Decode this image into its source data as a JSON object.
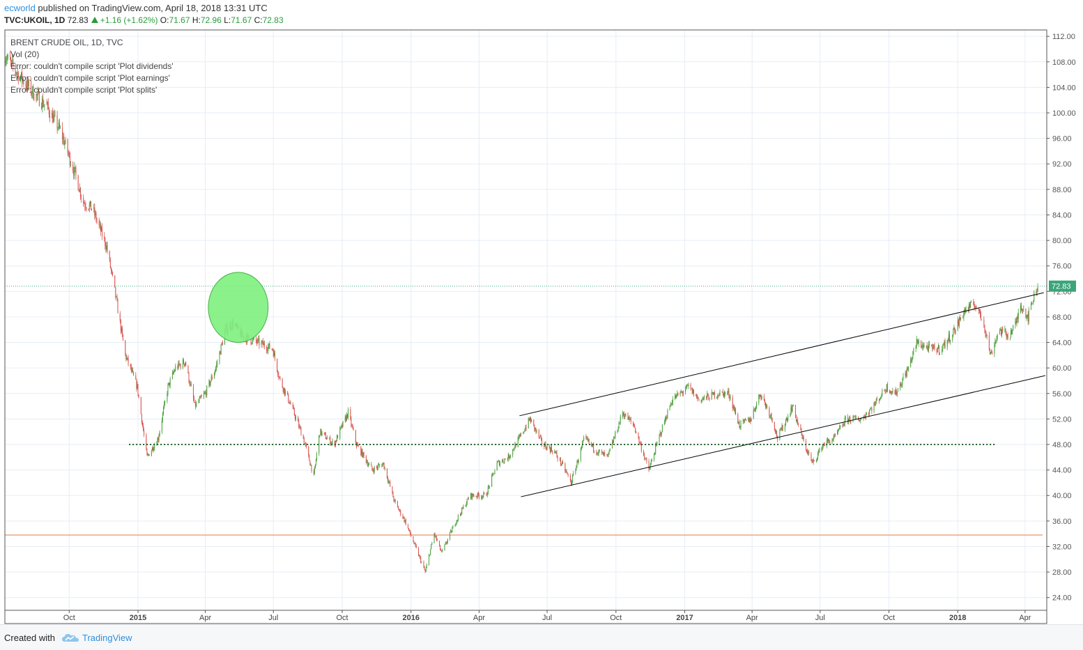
{
  "header": {
    "author": "ecworld",
    "published": "published on TradingView.com, April 18, 2018 13:31 UTC",
    "symbol": "TVC:UKOIL, 1D",
    "last": "72.83",
    "change": "+1.16 (+1.62%)",
    "o_label": "O:",
    "o_val": "71.67",
    "h_label": "H:",
    "h_val": "72.96",
    "l_label": "L:",
    "l_val": "71.67",
    "c_label": "C:",
    "c_val": "72.83"
  },
  "legend": {
    "title": "BRENT CRUDE OIL, 1D, TVC",
    "vol": "Vol (20)",
    "err1": "Error: couldn't compile script 'Plot dividends'",
    "err2": "Error: couldn't compile script 'Plot earnings'",
    "err3": "Error: couldn't compile script 'Plot splits'"
  },
  "footer": {
    "created_with": "Created with",
    "brand": "TradingView",
    "logo_icon": "tradingview-cloud-icon"
  },
  "chart_data": {
    "type": "candlestick",
    "title": "BRENT CRUDE OIL, 1D, TVC",
    "ylim": [
      22,
      113
    ],
    "y_ticks": [
      24,
      28,
      32,
      36,
      40,
      44,
      48,
      52,
      56,
      60,
      64,
      68,
      72,
      76,
      80,
      84,
      88,
      92,
      96,
      100,
      104,
      108,
      112
    ],
    "x_ticks": [
      {
        "label": "Oct",
        "date": "2014-10-01",
        "bold": false
      },
      {
        "label": "2015",
        "date": "2015-01-01",
        "bold": true
      },
      {
        "label": "Apr",
        "date": "2015-04-01",
        "bold": false
      },
      {
        "label": "Jul",
        "date": "2015-07-01",
        "bold": false
      },
      {
        "label": "Oct",
        "date": "2015-10-01",
        "bold": false
      },
      {
        "label": "2016",
        "date": "2016-01-01",
        "bold": true
      },
      {
        "label": "Apr",
        "date": "2016-04-01",
        "bold": false
      },
      {
        "label": "Jul",
        "date": "2016-07-01",
        "bold": false
      },
      {
        "label": "Oct",
        "date": "2016-10-01",
        "bold": false
      },
      {
        "label": "2017",
        "date": "2017-01-01",
        "bold": true
      },
      {
        "label": "Apr",
        "date": "2017-04-01",
        "bold": false
      },
      {
        "label": "Jul",
        "date": "2017-07-01",
        "bold": false
      },
      {
        "label": "Oct",
        "date": "2017-10-01",
        "bold": false
      },
      {
        "label": "2018",
        "date": "2018-01-01",
        "bold": true
      },
      {
        "label": "Apr",
        "date": "2018-04-01",
        "bold": false
      }
    ],
    "x_range": [
      "2014-07-07",
      "2018-04-30"
    ],
    "grid": true,
    "last_price": 72.83,
    "last_price_label": "72.83",
    "price_path": [
      [
        "2014-07-07",
        109
      ],
      [
        "2014-07-25",
        106
      ],
      [
        "2014-08-15",
        103
      ],
      [
        "2014-09-01",
        101
      ],
      [
        "2014-09-20",
        97
      ],
      [
        "2014-10-10",
        90
      ],
      [
        "2014-10-20",
        86
      ],
      [
        "2014-11-01",
        85
      ],
      [
        "2014-11-20",
        79
      ],
      [
        "2014-12-01",
        72
      ],
      [
        "2014-12-15",
        62
      ],
      [
        "2014-12-31",
        57
      ],
      [
        "2015-01-13",
        46
      ],
      [
        "2015-01-28",
        49
      ],
      [
        "2015-02-10",
        57
      ],
      [
        "2015-02-20",
        60
      ],
      [
        "2015-03-05",
        61
      ],
      [
        "2015-03-18",
        54
      ],
      [
        "2015-04-01",
        56
      ],
      [
        "2015-04-15",
        60
      ],
      [
        "2015-04-28",
        66
      ],
      [
        "2015-05-08",
        67
      ],
      [
        "2015-05-20",
        65
      ],
      [
        "2015-06-10",
        64
      ],
      [
        "2015-06-30",
        63
      ],
      [
        "2015-07-10",
        58
      ],
      [
        "2015-07-25",
        54
      ],
      [
        "2015-08-10",
        49
      ],
      [
        "2015-08-24",
        43
      ],
      [
        "2015-09-01",
        50
      ],
      [
        "2015-09-20",
        48
      ],
      [
        "2015-10-09",
        53
      ],
      [
        "2015-10-20",
        48
      ],
      [
        "2015-11-10",
        44
      ],
      [
        "2015-11-25",
        45
      ],
      [
        "2015-12-10",
        39
      ],
      [
        "2015-12-24",
        36
      ],
      [
        "2016-01-10",
        31
      ],
      [
        "2016-01-20",
        28
      ],
      [
        "2016-02-01",
        34
      ],
      [
        "2016-02-11",
        31
      ],
      [
        "2016-03-01",
        36
      ],
      [
        "2016-03-20",
        40
      ],
      [
        "2016-04-10",
        40
      ],
      [
        "2016-04-25",
        45
      ],
      [
        "2016-05-10",
        46
      ],
      [
        "2016-05-25",
        49
      ],
      [
        "2016-06-08",
        52
      ],
      [
        "2016-06-25",
        48
      ],
      [
        "2016-07-10",
        47
      ],
      [
        "2016-07-25",
        44
      ],
      [
        "2016-08-02",
        42
      ],
      [
        "2016-08-20",
        49
      ],
      [
        "2016-09-05",
        47
      ],
      [
        "2016-09-20",
        46
      ],
      [
        "2016-10-10",
        53
      ],
      [
        "2016-10-25",
        51
      ],
      [
        "2016-11-14",
        44
      ],
      [
        "2016-11-30",
        50
      ],
      [
        "2016-12-15",
        55
      ],
      [
        "2017-01-06",
        57
      ],
      [
        "2017-01-20",
        55
      ],
      [
        "2017-02-15",
        56
      ],
      [
        "2017-03-01",
        56
      ],
      [
        "2017-03-15",
        51
      ],
      [
        "2017-03-30",
        52
      ],
      [
        "2017-04-12",
        56
      ],
      [
        "2017-04-28",
        52
      ],
      [
        "2017-05-05",
        49
      ],
      [
        "2017-05-25",
        54
      ],
      [
        "2017-06-10",
        48
      ],
      [
        "2017-06-21",
        45
      ],
      [
        "2017-07-05",
        48
      ],
      [
        "2017-07-20",
        49
      ],
      [
        "2017-08-05",
        52
      ],
      [
        "2017-08-25",
        52
      ],
      [
        "2017-09-10",
        54
      ],
      [
        "2017-09-28",
        57
      ],
      [
        "2017-10-10",
        56
      ],
      [
        "2017-10-27",
        60
      ],
      [
        "2017-11-07",
        64
      ],
      [
        "2017-11-25",
        63
      ],
      [
        "2017-12-10",
        63
      ],
      [
        "2017-12-28",
        66
      ],
      [
        "2018-01-10",
        69
      ],
      [
        "2018-01-24",
        70
      ],
      [
        "2018-02-05",
        67
      ],
      [
        "2018-02-14",
        62
      ],
      [
        "2018-02-25",
        66
      ],
      [
        "2018-03-10",
        65
      ],
      [
        "2018-03-20",
        67
      ],
      [
        "2018-03-26",
        70
      ],
      [
        "2018-04-05",
        68
      ],
      [
        "2018-04-12",
        71
      ],
      [
        "2018-04-18",
        72.83
      ]
    ],
    "annotations": {
      "channel_upper": [
        [
          "2016-05-25",
          52.5
        ],
        [
          "2018-04-26",
          71.8
        ]
      ],
      "channel_lower": [
        [
          "2016-05-27",
          39.8
        ],
        [
          "2018-04-28",
          58.8
        ]
      ],
      "support_dotted": {
        "price": 48,
        "from": "2014-12-20",
        "to": "2018-02-20",
        "color": "#1e5f1e"
      },
      "horizontal_line": {
        "price": 33.8,
        "color": "#e8946a"
      },
      "ellipse": {
        "center": [
          "2015-05-15",
          69.5
        ],
        "rx_days": 40,
        "ry_price": 5.5,
        "fill": "#7ef07e",
        "stroke": "#45b045"
      }
    }
  }
}
